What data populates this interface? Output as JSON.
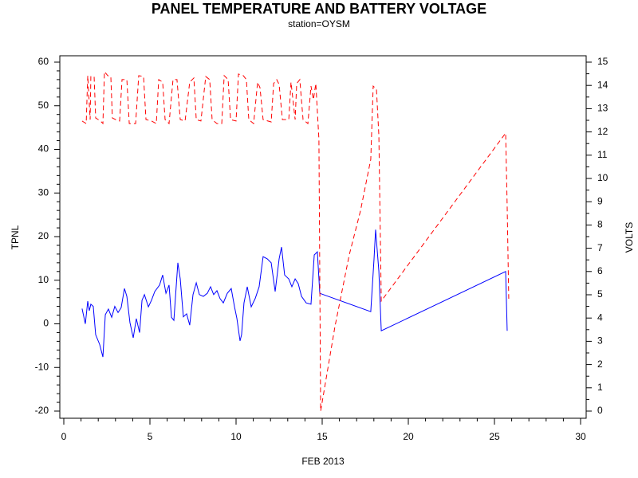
{
  "chart_data": {
    "type": "line",
    "title": "PANEL TEMPERATURE AND BATTERY VOLTAGE",
    "subtitle": "station=OYSM",
    "xlabel": "FEB 2013",
    "xlim": [
      0,
      30
    ],
    "xticks": [
      0,
      5,
      10,
      15,
      20,
      25,
      30
    ],
    "ylim": [
      -20,
      60
    ],
    "yticks": [
      -20,
      -10,
      0,
      10,
      20,
      30,
      40,
      50,
      60
    ],
    "y2lim": [
      0,
      15
    ],
    "y2ticks": [
      0,
      1,
      2,
      3,
      4,
      5,
      6,
      7,
      8,
      9,
      10,
      11,
      12,
      13,
      14,
      15
    ],
    "series": [
      {
        "name": "TPNL",
        "color": "#0000ff",
        "dashed": false,
        "x": [
          1.06,
          1.25,
          1.39,
          1.48,
          1.57,
          1.71,
          1.85,
          2.08,
          2.27,
          2.41,
          2.59,
          2.78,
          2.96,
          3.15,
          3.33,
          3.52,
          3.66,
          3.84,
          4.03,
          4.21,
          4.4,
          4.54,
          4.68,
          4.91,
          5.09,
          5.28,
          5.56,
          5.74,
          5.93,
          6.11,
          6.25,
          6.39,
          6.62,
          6.76,
          6.94,
          7.13,
          7.31,
          7.5,
          7.69,
          7.87,
          8.1,
          8.33,
          8.52,
          8.7,
          8.89,
          9.07,
          9.26,
          9.49,
          9.72,
          9.91,
          10.05,
          10.23,
          10.32,
          10.46,
          10.65,
          10.88,
          11.11,
          11.34,
          11.57,
          11.81,
          12.04,
          12.27,
          12.5,
          12.64,
          12.82,
          13.06,
          13.24,
          13.43,
          13.61,
          13.8,
          14.07,
          14.35,
          14.54,
          14.72,
          14.86,
          17.82,
          18.01,
          18.1,
          18.29,
          18.43,
          25.65,
          25.74
        ],
        "values": [
          3.5,
          0,
          5.2,
          3,
          4.5,
          4,
          -2.5,
          -4.7,
          -7.6,
          2.1,
          3.4,
          1.5,
          4,
          2.6,
          3.7,
          8.1,
          6.3,
          0.3,
          -3.2,
          1.2,
          -2,
          5.4,
          6.7,
          3.9,
          5.4,
          7.4,
          8.9,
          11.2,
          7,
          8.9,
          1.5,
          0.8,
          14,
          10.3,
          1.6,
          2.3,
          -0.3,
          6.7,
          9.4,
          6.7,
          6.3,
          7,
          8.5,
          6.7,
          7.6,
          5.8,
          4.8,
          7,
          8.1,
          3.9,
          1.2,
          -3.9,
          -2.5,
          4.8,
          8.5,
          3.9,
          5.8,
          8.5,
          15.4,
          14.9,
          14,
          7.4,
          14.9,
          17.6,
          11.2,
          10.3,
          8.5,
          10.3,
          9.2,
          6.3,
          4.8,
          4.5,
          15.8,
          16.5,
          7,
          2.8,
          14.9,
          21.6,
          12.1,
          -1.6,
          12,
          -1.6
        ]
      },
      {
        "name": "VOLTS",
        "color": "#ff0000",
        "dashed": true,
        "axis": "y2",
        "x": [
          1.06,
          1.3,
          1.39,
          1.53,
          1.57,
          1.76,
          1.85,
          2.13,
          2.27,
          2.36,
          2.55,
          2.73,
          2.82,
          3.01,
          3.24,
          3.38,
          3.66,
          3.8,
          4.17,
          4.35,
          4.63,
          4.77,
          5.09,
          5.37,
          5.51,
          5.74,
          5.88,
          6.11,
          6.34,
          6.57,
          6.76,
          7.04,
          7.31,
          7.55,
          7.69,
          7.96,
          8.24,
          8.47,
          8.61,
          8.89,
          9.17,
          9.31,
          9.54,
          9.68,
          10.0,
          10.14,
          10.42,
          10.6,
          10.74,
          11.02,
          11.25,
          11.39,
          11.57,
          12.04,
          12.18,
          12.36,
          12.5,
          12.69,
          13.06,
          13.19,
          13.43,
          13.52,
          13.7,
          13.89,
          14.17,
          14.35,
          14.49,
          14.63,
          14.81,
          14.91,
          15.74,
          16.57,
          17.22,
          17.82,
          17.96,
          18.15,
          18.29,
          18.43,
          25.65,
          25.74,
          25.83
        ],
        "values": [
          12.47,
          12.36,
          14.42,
          12.53,
          14.38,
          14.38,
          12.6,
          12.47,
          12.36,
          14.59,
          14.42,
          14.38,
          12.6,
          12.53,
          12.47,
          14.25,
          14.25,
          12.36,
          12.36,
          14.42,
          14.38,
          12.53,
          12.47,
          12.36,
          14.25,
          14.14,
          12.53,
          12.36,
          14.25,
          14.25,
          12.53,
          12.47,
          14.14,
          14.32,
          12.53,
          12.47,
          14.38,
          14.25,
          12.53,
          12.36,
          12.36,
          14.42,
          14.25,
          12.53,
          12.47,
          14.49,
          14.42,
          14.25,
          12.53,
          12.36,
          14.14,
          13.9,
          12.53,
          12.43,
          14.08,
          14.25,
          14.04,
          12.53,
          12.53,
          14.14,
          12.53,
          14.08,
          14.25,
          12.53,
          12.36,
          13.97,
          13.39,
          14.08,
          11.68,
          0,
          3.63,
          6.71,
          8.6,
          10.82,
          13.97,
          13.84,
          11.85,
          4.73,
          11.95,
          8.77,
          4.83
        ]
      }
    ]
  }
}
